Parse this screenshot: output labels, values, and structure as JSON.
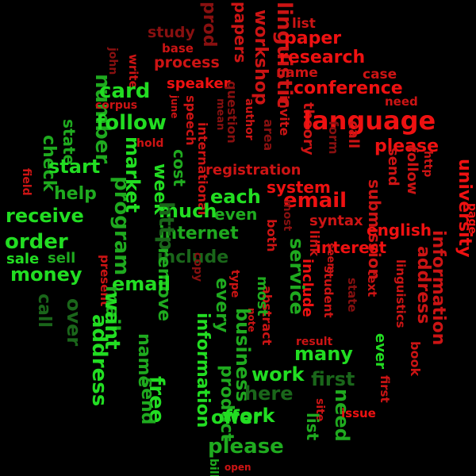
{
  "colors": {
    "background": "#000000",
    "spam_bright": "#22dd22",
    "spam_mid": "#1faa1f",
    "spam_dark": "#1a661a",
    "ling_bright": "#ee1111",
    "ling_mid": "#cc1414",
    "ling_dark": "#881010"
  },
  "words": [
    "list",
    "study",
    "base",
    "prod",
    "papers",
    "workshop",
    "linguistic",
    "paper",
    "research",
    "john",
    "write",
    "process",
    "name",
    "case",
    "number",
    "corpus",
    "june",
    "speaker",
    "question",
    "invite",
    "conference",
    "need",
    "card",
    "hold",
    "speech",
    "mean",
    "author",
    "theory",
    "language",
    "follow",
    "area",
    "form",
    "call",
    "please",
    "state",
    "check",
    "international",
    "registration",
    "http",
    "send",
    "follow",
    "market",
    "start",
    "cost",
    "field",
    "week",
    "program",
    "university",
    "help",
    "receive",
    "each",
    "system",
    "email",
    "even",
    "much",
    "most",
    "syntax",
    "submission",
    "english",
    "page",
    "internet",
    "http",
    "both",
    "link",
    "order",
    "sale",
    "sell",
    "interest",
    "seem",
    "include",
    "include",
    "money",
    "service",
    "present",
    "information",
    "address",
    "remove",
    "student",
    "state",
    "text",
    "call",
    "email",
    "copy",
    "mail",
    "linguistics",
    "over",
    "want",
    "type",
    "abstract",
    "work",
    "most",
    "note",
    "result",
    "many",
    "ever",
    "name",
    "address",
    "every",
    "information",
    "business",
    "book",
    "free",
    "product",
    "send",
    "first",
    "site",
    "here",
    "first",
    "list",
    "work",
    "need",
    "issue",
    "offer",
    "bill",
    "please",
    "open"
  ]
}
